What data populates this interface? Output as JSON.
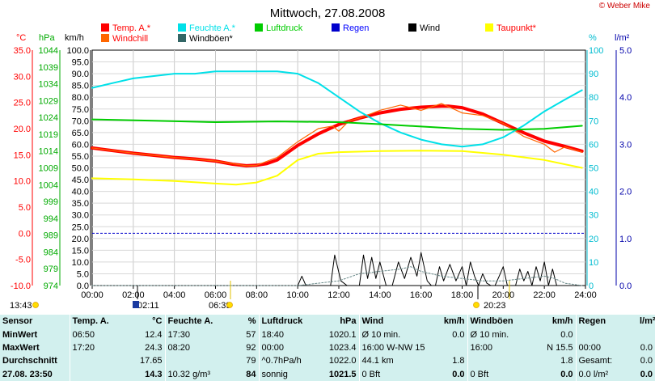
{
  "title": "Mittwoch, 27.08.2008",
  "credit": "© Weber Mike",
  "legend": [
    {
      "label": "Temp. A.*",
      "color": "#ff0000"
    },
    {
      "label": "Feuchte A.*",
      "color": "#00e0e8"
    },
    {
      "label": "Luftdruck",
      "color": "#00cc00"
    },
    {
      "label": "Regen",
      "color": "#0000ff"
    },
    {
      "label": "Wind",
      "color": "#000000"
    },
    {
      "label": "Taupunkt*",
      "color": "#ff0000"
    },
    {
      "label": "Windchill",
      "color": "#ff0000"
    },
    {
      "label": "Windböen*",
      "color": "#000000"
    }
  ],
  "axis_units": {
    "temp": "°C",
    "pressure": "hPa",
    "wind": "km/h",
    "humidity": "%",
    "rain": "l/m²"
  },
  "chart_data": {
    "type": "line",
    "x": [
      "00:00",
      "02:00",
      "04:00",
      "06:00",
      "08:00",
      "10:00",
      "12:00",
      "14:00",
      "16:00",
      "18:00",
      "20:00",
      "22:00",
      "24:00"
    ],
    "y_temp": {
      "ylim": [
        -10,
        35
      ],
      "ticks": [
        "35.0",
        "30.0",
        "25.0",
        "20.0",
        "15.0",
        "10.0",
        "5.0",
        "0.0",
        "-5.0",
        "-10.0"
      ]
    },
    "y_pressure": {
      "ylim": [
        974,
        1044
      ],
      "ticks": [
        "1044",
        "1039",
        "1034",
        "1029",
        "1024",
        "1019",
        "1014",
        "1009",
        "1004",
        "999",
        "994",
        "989",
        "984",
        "979",
        "974"
      ]
    },
    "y_wind": {
      "ylim": [
        0,
        100
      ],
      "ticks": [
        "100.0",
        "95.0",
        "90.0",
        "85.0",
        "80.0",
        "75.0",
        "70.0",
        "65.0",
        "60.0",
        "55.0",
        "50.0",
        "45.0",
        "40.0",
        "35.0",
        "30.0",
        "25.0",
        "20.0",
        "15.0",
        "10.0",
        "5.0",
        "0.0"
      ]
    },
    "y_humidity": {
      "ylim": [
        0,
        100
      ],
      "ticks": [
        "100",
        "90",
        "80",
        "70",
        "60",
        "50",
        "40",
        "30",
        "20",
        "10",
        "0"
      ]
    },
    "y_rain": {
      "ylim": [
        0,
        5
      ],
      "ticks": [
        "5.0",
        "4.0",
        "3.0",
        "2.0",
        "1.0",
        "0.0"
      ]
    },
    "series": [
      {
        "name": "Temp. A.*",
        "color": "#ff0000",
        "axis": "temp",
        "points": [
          [
            0,
            16.3
          ],
          [
            1,
            15.8
          ],
          [
            2,
            15.3
          ],
          [
            3,
            14.9
          ],
          [
            4,
            14.5
          ],
          [
            5,
            14.2
          ],
          [
            6,
            13.8
          ],
          [
            6.83,
            13.2
          ],
          [
            7.5,
            12.9
          ],
          [
            8,
            13.0
          ],
          [
            8.5,
            13.3
          ],
          [
            9,
            14.0
          ],
          [
            10,
            16.8
          ],
          [
            11,
            19.0
          ],
          [
            12,
            20.8
          ],
          [
            13,
            22.0
          ],
          [
            14,
            23.0
          ],
          [
            15,
            23.7
          ],
          [
            16,
            24.1
          ],
          [
            17,
            24.3
          ],
          [
            17.33,
            24.3
          ],
          [
            18,
            24.0
          ],
          [
            19,
            22.8
          ],
          [
            20,
            21.0
          ],
          [
            21,
            19.2
          ],
          [
            22,
            17.6
          ],
          [
            23,
            16.6
          ],
          [
            23.83,
            15.7
          ]
        ]
      },
      {
        "name": "Windchill",
        "color": "#ff6600",
        "axis": "temp",
        "points": [
          [
            0,
            16.3
          ],
          [
            2,
            15.3
          ],
          [
            4,
            14.5
          ],
          [
            6,
            13.8
          ],
          [
            7.5,
            12.9
          ],
          [
            8,
            13.0
          ],
          [
            9,
            14.5
          ],
          [
            10,
            17.5
          ],
          [
            11,
            20.0
          ],
          [
            11.7,
            20.5
          ],
          [
            12,
            19.5
          ],
          [
            12.5,
            21.5
          ],
          [
            13,
            22.0
          ],
          [
            14,
            23.5
          ],
          [
            15,
            24.5
          ],
          [
            16,
            23.5
          ],
          [
            17,
            24.8
          ],
          [
            18,
            23.0
          ],
          [
            19,
            22.5
          ],
          [
            20,
            21.0
          ],
          [
            21,
            18.5
          ],
          [
            22,
            17.0
          ],
          [
            22.5,
            15.5
          ],
          [
            23,
            16.5
          ],
          [
            23.83,
            15.5
          ]
        ]
      },
      {
        "name": "Feuchte A.*",
        "color": "#00e0e8",
        "axis": "humidity",
        "points": [
          [
            0,
            84
          ],
          [
            1,
            86
          ],
          [
            2,
            88
          ],
          [
            3,
            89
          ],
          [
            4,
            90
          ],
          [
            5,
            90
          ],
          [
            6,
            91
          ],
          [
            7,
            91
          ],
          [
            8,
            91
          ],
          [
            9,
            91
          ],
          [
            10,
            90
          ],
          [
            11,
            86
          ],
          [
            12,
            80
          ],
          [
            13,
            74
          ],
          [
            14,
            69
          ],
          [
            15,
            65
          ],
          [
            16,
            62
          ],
          [
            17,
            60
          ],
          [
            18,
            59
          ],
          [
            19,
            60
          ],
          [
            20,
            63
          ],
          [
            21,
            68
          ],
          [
            22,
            74
          ],
          [
            23,
            79
          ],
          [
            23.83,
            83
          ]
        ]
      },
      {
        "name": "Luftdruck",
        "color": "#00cc00",
        "axis": "pressure",
        "points": [
          [
            0,
            1023.4
          ],
          [
            3,
            1023.0
          ],
          [
            6,
            1022.6
          ],
          [
            9,
            1022.8
          ],
          [
            12,
            1022.6
          ],
          [
            14,
            1022.0
          ],
          [
            16,
            1021.3
          ],
          [
            18,
            1020.6
          ],
          [
            20,
            1020.3
          ],
          [
            22,
            1020.6
          ],
          [
            23.83,
            1021.5
          ]
        ]
      },
      {
        "name": "Taupunkt*",
        "color": "#ffff00",
        "axis": "temp",
        "points": [
          [
            0,
            10.5
          ],
          [
            2,
            10.3
          ],
          [
            4,
            10.0
          ],
          [
            6,
            9.5
          ],
          [
            7,
            9.3
          ],
          [
            8,
            9.7
          ],
          [
            9,
            11.0
          ],
          [
            10,
            14.0
          ],
          [
            11,
            15.2
          ],
          [
            12,
            15.5
          ],
          [
            14,
            15.7
          ],
          [
            16,
            15.8
          ],
          [
            18,
            15.7
          ],
          [
            20,
            15.0
          ],
          [
            22,
            14.0
          ],
          [
            23.83,
            12.5
          ]
        ]
      },
      {
        "name": "Wind",
        "color": "#000000",
        "axis": "wind",
        "points": [
          [
            0,
            0
          ],
          [
            10,
            0
          ],
          [
            10.2,
            4
          ],
          [
            10.4,
            0
          ],
          [
            11.6,
            0
          ],
          [
            11.8,
            13
          ],
          [
            12.1,
            2
          ],
          [
            12.4,
            0
          ],
          [
            13,
            0
          ],
          [
            13.2,
            13
          ],
          [
            13.4,
            3
          ],
          [
            13.6,
            12
          ],
          [
            13.8,
            3
          ],
          [
            14,
            10
          ],
          [
            14.3,
            0
          ],
          [
            14.6,
            0
          ],
          [
            14.9,
            10
          ],
          [
            15.2,
            3
          ],
          [
            15.5,
            12
          ],
          [
            15.8,
            4
          ],
          [
            16,
            14
          ],
          [
            16.3,
            2
          ],
          [
            16.5,
            0
          ],
          [
            16.7,
            0
          ],
          [
            16.9,
            8
          ],
          [
            17.1,
            2
          ],
          [
            17.4,
            9
          ],
          [
            17.7,
            2
          ],
          [
            18,
            8
          ],
          [
            18.2,
            0
          ],
          [
            18.4,
            10
          ],
          [
            18.6,
            4
          ],
          [
            18.8,
            0
          ],
          [
            19,
            5
          ],
          [
            19.2,
            1
          ],
          [
            19.4,
            0
          ],
          [
            19.6,
            0
          ],
          [
            19.8,
            4
          ],
          [
            20,
            8
          ],
          [
            20.2,
            0
          ],
          [
            20.6,
            0
          ],
          [
            20.8,
            7
          ],
          [
            21,
            2
          ],
          [
            21.2,
            6
          ],
          [
            21.4,
            0
          ],
          [
            21.6,
            8
          ],
          [
            21.8,
            2
          ],
          [
            22,
            10
          ],
          [
            22.2,
            0
          ],
          [
            22.4,
            7
          ],
          [
            22.6,
            0
          ],
          [
            23.83,
            0
          ]
        ]
      },
      {
        "name": "Windböen*",
        "color": "#6a8a8a",
        "axis": "wind",
        "points": [
          [
            0,
            0
          ],
          [
            10,
            0
          ],
          [
            12,
            2
          ],
          [
            13,
            5
          ],
          [
            14,
            6
          ],
          [
            15,
            7
          ],
          [
            15.5,
            8
          ],
          [
            16,
            6
          ],
          [
            17,
            4
          ],
          [
            18,
            3
          ],
          [
            19,
            2
          ],
          [
            20,
            2
          ],
          [
            21,
            3
          ],
          [
            22,
            4
          ],
          [
            22.5,
            3
          ],
          [
            23,
            1
          ],
          [
            23.83,
            0
          ]
        ]
      }
    ]
  },
  "time_markers": [
    {
      "label": "13:43",
      "icon": "sun-icon"
    },
    {
      "label": "02:11",
      "icon": "moon-icon"
    },
    {
      "label": "06:39",
      "icon": "sunrise-icon"
    },
    {
      "label": "20:23",
      "icon": "sunset-icon"
    }
  ],
  "table": {
    "header": [
      "Sensor",
      "Temp. A.",
      "°C",
      "Feuchte A.",
      "%",
      "Luftdruck",
      "hPa",
      "Wind",
      "km/h",
      "Windböen",
      "km/h",
      "Regen",
      "l/m²"
    ],
    "rows": [
      {
        "label": "MinWert",
        "cells": [
          "06:50",
          "12.4",
          "17:30",
          "57",
          "18:40",
          "1020.1",
          "Ø 10 min.",
          "0.0",
          "Ø 10 min.",
          "0.0",
          "",
          ""
        ]
      },
      {
        "label": "MaxWert",
        "cells": [
          "17:20",
          "24.3",
          "08:20",
          "92",
          "00:00",
          "1023.4",
          "16:00   W-NW 15.5",
          "",
          "16:00",
          "N 15.5",
          "00:00",
          "0.0"
        ]
      },
      {
        "label": "Durchschnitt",
        "cells": [
          "",
          "17.65",
          "",
          "79",
          "^0.7hPa/h",
          "1022.0",
          "44.1 km",
          "1.8",
          "",
          "1.8",
          "Gesamt:",
          "0.0"
        ]
      },
      {
        "label": "27.08.  23:50",
        "cells": [
          "",
          "14.3",
          "10.32 g/m³",
          "84",
          "sonnig",
          "1021.5",
          "0 Bft",
          "0.0",
          "0 Bft",
          "0.0",
          "0.0 l/m²",
          "0.0"
        ]
      }
    ]
  }
}
